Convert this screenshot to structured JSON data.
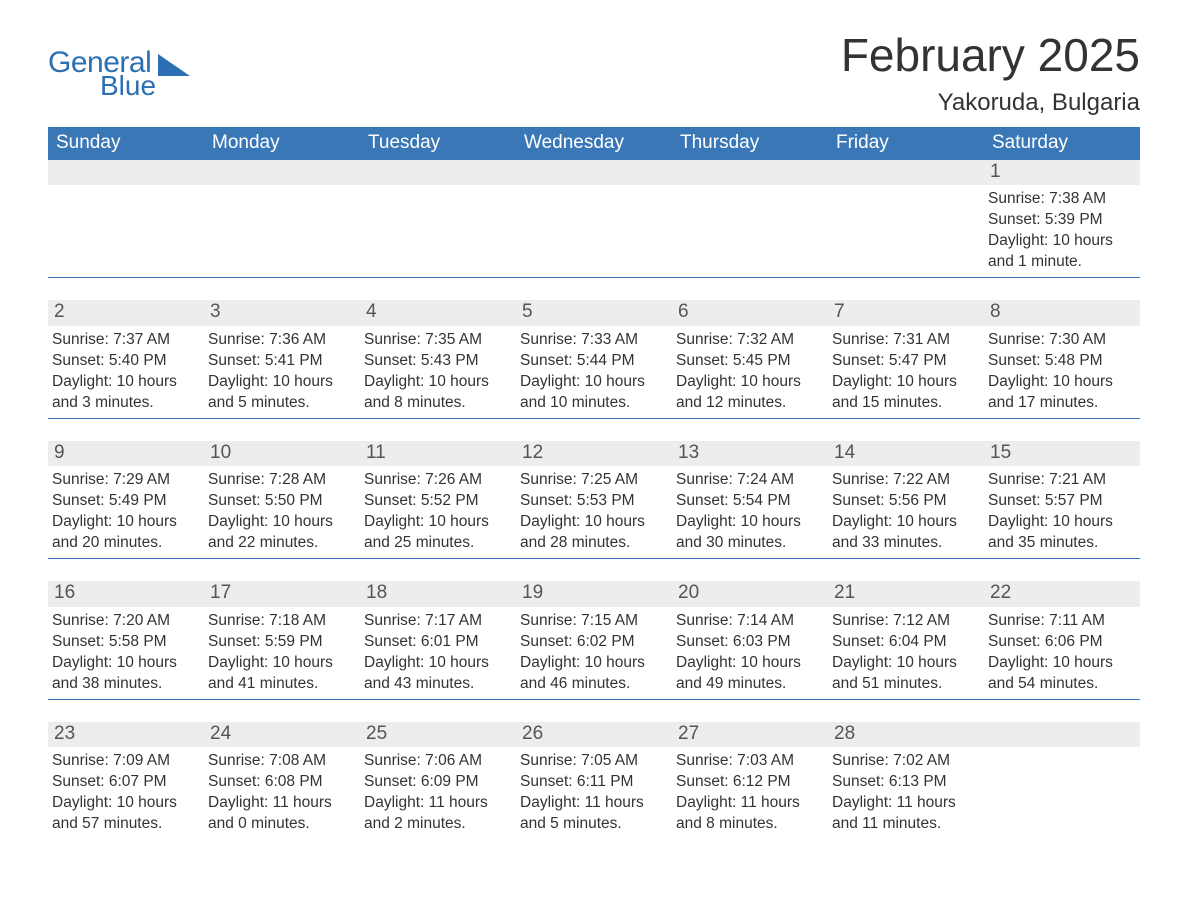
{
  "brand": {
    "line1": "General",
    "line2": "Blue",
    "color": "#2c6fb3"
  },
  "title": "February 2025",
  "location": "Yakoruda, Bulgaria",
  "colors": {
    "header_bg": "#3a77b7",
    "header_text": "#ffffff",
    "daynum_bg": "#ededed",
    "daynum_text": "#555555",
    "body_text": "#333333",
    "page_bg": "#ffffff",
    "row_divider": "#3a77b7"
  },
  "weekdays": [
    "Sunday",
    "Monday",
    "Tuesday",
    "Wednesday",
    "Thursday",
    "Friday",
    "Saturday"
  ],
  "labels": {
    "sunrise": "Sunrise",
    "sunset": "Sunset",
    "daylight": "Daylight"
  },
  "weeks": [
    [
      null,
      null,
      null,
      null,
      null,
      null,
      {
        "day": "1",
        "sunrise": "7:38 AM",
        "sunset": "5:39 PM",
        "daylight": "10 hours and 1 minute."
      }
    ],
    [
      {
        "day": "2",
        "sunrise": "7:37 AM",
        "sunset": "5:40 PM",
        "daylight": "10 hours and 3 minutes."
      },
      {
        "day": "3",
        "sunrise": "7:36 AM",
        "sunset": "5:41 PM",
        "daylight": "10 hours and 5 minutes."
      },
      {
        "day": "4",
        "sunrise": "7:35 AM",
        "sunset": "5:43 PM",
        "daylight": "10 hours and 8 minutes."
      },
      {
        "day": "5",
        "sunrise": "7:33 AM",
        "sunset": "5:44 PM",
        "daylight": "10 hours and 10 minutes."
      },
      {
        "day": "6",
        "sunrise": "7:32 AM",
        "sunset": "5:45 PM",
        "daylight": "10 hours and 12 minutes."
      },
      {
        "day": "7",
        "sunrise": "7:31 AM",
        "sunset": "5:47 PM",
        "daylight": "10 hours and 15 minutes."
      },
      {
        "day": "8",
        "sunrise": "7:30 AM",
        "sunset": "5:48 PM",
        "daylight": "10 hours and 17 minutes."
      }
    ],
    [
      {
        "day": "9",
        "sunrise": "7:29 AM",
        "sunset": "5:49 PM",
        "daylight": "10 hours and 20 minutes."
      },
      {
        "day": "10",
        "sunrise": "7:28 AM",
        "sunset": "5:50 PM",
        "daylight": "10 hours and 22 minutes."
      },
      {
        "day": "11",
        "sunrise": "7:26 AM",
        "sunset": "5:52 PM",
        "daylight": "10 hours and 25 minutes."
      },
      {
        "day": "12",
        "sunrise": "7:25 AM",
        "sunset": "5:53 PM",
        "daylight": "10 hours and 28 minutes."
      },
      {
        "day": "13",
        "sunrise": "7:24 AM",
        "sunset": "5:54 PM",
        "daylight": "10 hours and 30 minutes."
      },
      {
        "day": "14",
        "sunrise": "7:22 AM",
        "sunset": "5:56 PM",
        "daylight": "10 hours and 33 minutes."
      },
      {
        "day": "15",
        "sunrise": "7:21 AM",
        "sunset": "5:57 PM",
        "daylight": "10 hours and 35 minutes."
      }
    ],
    [
      {
        "day": "16",
        "sunrise": "7:20 AM",
        "sunset": "5:58 PM",
        "daylight": "10 hours and 38 minutes."
      },
      {
        "day": "17",
        "sunrise": "7:18 AM",
        "sunset": "5:59 PM",
        "daylight": "10 hours and 41 minutes."
      },
      {
        "day": "18",
        "sunrise": "7:17 AM",
        "sunset": "6:01 PM",
        "daylight": "10 hours and 43 minutes."
      },
      {
        "day": "19",
        "sunrise": "7:15 AM",
        "sunset": "6:02 PM",
        "daylight": "10 hours and 46 minutes."
      },
      {
        "day": "20",
        "sunrise": "7:14 AM",
        "sunset": "6:03 PM",
        "daylight": "10 hours and 49 minutes."
      },
      {
        "day": "21",
        "sunrise": "7:12 AM",
        "sunset": "6:04 PM",
        "daylight": "10 hours and 51 minutes."
      },
      {
        "day": "22",
        "sunrise": "7:11 AM",
        "sunset": "6:06 PM",
        "daylight": "10 hours and 54 minutes."
      }
    ],
    [
      {
        "day": "23",
        "sunrise": "7:09 AM",
        "sunset": "6:07 PM",
        "daylight": "10 hours and 57 minutes."
      },
      {
        "day": "24",
        "sunrise": "7:08 AM",
        "sunset": "6:08 PM",
        "daylight": "11 hours and 0 minutes."
      },
      {
        "day": "25",
        "sunrise": "7:06 AM",
        "sunset": "6:09 PM",
        "daylight": "11 hours and 2 minutes."
      },
      {
        "day": "26",
        "sunrise": "7:05 AM",
        "sunset": "6:11 PM",
        "daylight": "11 hours and 5 minutes."
      },
      {
        "day": "27",
        "sunrise": "7:03 AM",
        "sunset": "6:12 PM",
        "daylight": "11 hours and 8 minutes."
      },
      {
        "day": "28",
        "sunrise": "7:02 AM",
        "sunset": "6:13 PM",
        "daylight": "11 hours and 11 minutes."
      },
      null
    ]
  ]
}
